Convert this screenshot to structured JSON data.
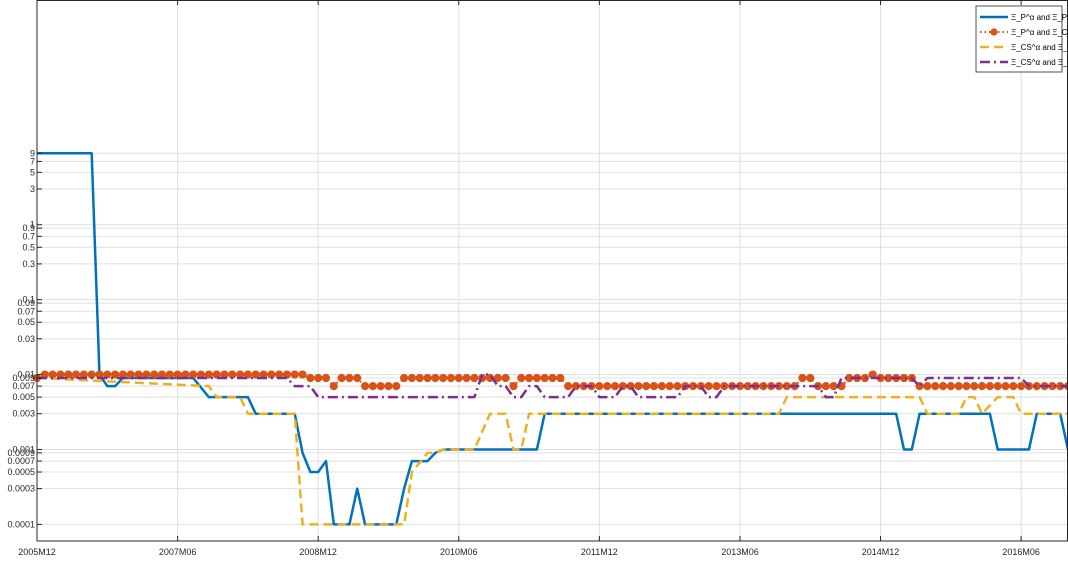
{
  "chart_data": {
    "type": "line",
    "y_scale": "log",
    "ylim": [
      6e-05,
      1000
    ],
    "grid": true,
    "legend_position": "top-right",
    "x_tick_labels": [
      "2005M12",
      "2007M06",
      "2008M12",
      "2010M06",
      "2011M12",
      "2013M06",
      "2014M12",
      "2016M06"
    ],
    "y_tick_values": [
      0.0001,
      0.0003,
      0.0005,
      0.0007,
      0.0009,
      0.001,
      0.003,
      0.005,
      0.007,
      0.009,
      0.01,
      0.03,
      0.05,
      0.07,
      0.09,
      0.1,
      0.3,
      0.5,
      0.7,
      0.9,
      1,
      3,
      5,
      7,
      9
    ],
    "y_tick_labels": [
      "0.0001",
      "0.0003",
      "0.0005",
      "0.0007",
      "0.0009",
      "0.001",
      "0.003",
      "0.005",
      "0.007",
      "0.009",
      "0.01",
      "0.03",
      "0.05",
      "0.07",
      "0.09",
      "0.1",
      "0.3",
      "0.5",
      "0.7",
      "0.9",
      "1",
      "3",
      "5",
      "7",
      "9"
    ],
    "x_domain": [
      0,
      132
    ],
    "series": [
      {
        "name": "Ξ_P^α and Ξ_P^β",
        "color": "#0072BD",
        "style": "solid",
        "points": [
          [
            0,
            9
          ],
          [
            7,
            9
          ],
          [
            8,
            0.01
          ],
          [
            9,
            0.007
          ],
          [
            10,
            0.007
          ],
          [
            11,
            0.009
          ],
          [
            20,
            0.009
          ],
          [
            22,
            0.005
          ],
          [
            27,
            0.005
          ],
          [
            28,
            0.003
          ],
          [
            33,
            0.003
          ],
          [
            34,
            0.0009
          ],
          [
            35,
            0.0005
          ],
          [
            36,
            0.0005
          ],
          [
            37,
            0.0007
          ],
          [
            38,
            0.0001
          ],
          [
            40,
            0.0001
          ],
          [
            41,
            0.0003
          ],
          [
            42,
            0.0001
          ],
          [
            46,
            0.0001
          ],
          [
            47,
            0.0003
          ],
          [
            48,
            0.0007
          ],
          [
            50,
            0.0007
          ],
          [
            51,
            0.0009
          ],
          [
            52,
            0.001
          ],
          [
            64,
            0.001
          ],
          [
            65,
            0.003
          ],
          [
            110,
            0.003
          ],
          [
            111,
            0.001
          ],
          [
            112,
            0.001
          ],
          [
            113,
            0.003
          ],
          [
            122,
            0.003
          ],
          [
            123,
            0.001
          ],
          [
            127,
            0.001
          ],
          [
            128,
            0.003
          ],
          [
            131,
            0.003
          ],
          [
            132,
            0.001
          ]
        ]
      },
      {
        "name": "Ξ_P^α and Ξ_CS^β",
        "color": "#D95319",
        "style": "dotted-marker",
        "points": [
          [
            0,
            0.009
          ],
          [
            1,
            0.01
          ],
          [
            2,
            0.01
          ],
          [
            3,
            0.01
          ],
          [
            4,
            0.01
          ],
          [
            5,
            0.01
          ],
          [
            6,
            0.01
          ],
          [
            7,
            0.01
          ],
          [
            8,
            0.01
          ],
          [
            9,
            0.01
          ],
          [
            10,
            0.01
          ],
          [
            11,
            0.01
          ],
          [
            12,
            0.01
          ],
          [
            13,
            0.01
          ],
          [
            14,
            0.01
          ],
          [
            15,
            0.01
          ],
          [
            16,
            0.01
          ],
          [
            17,
            0.01
          ],
          [
            18,
            0.01
          ],
          [
            19,
            0.01
          ],
          [
            20,
            0.01
          ],
          [
            21,
            0.01
          ],
          [
            22,
            0.01
          ],
          [
            23,
            0.01
          ],
          [
            24,
            0.01
          ],
          [
            25,
            0.01
          ],
          [
            26,
            0.01
          ],
          [
            27,
            0.01
          ],
          [
            28,
            0.01
          ],
          [
            29,
            0.01
          ],
          [
            30,
            0.01
          ],
          [
            31,
            0.01
          ],
          [
            32,
            0.01
          ],
          [
            33,
            0.01
          ],
          [
            34,
            0.01
          ],
          [
            35,
            0.009
          ],
          [
            36,
            0.009
          ],
          [
            37,
            0.009
          ],
          [
            38,
            0.007
          ],
          [
            39,
            0.009
          ],
          [
            40,
            0.009
          ],
          [
            41,
            0.009
          ],
          [
            42,
            0.007
          ],
          [
            43,
            0.007
          ],
          [
            44,
            0.007
          ],
          [
            45,
            0.007
          ],
          [
            46,
            0.007
          ],
          [
            47,
            0.009
          ],
          [
            48,
            0.009
          ],
          [
            49,
            0.009
          ],
          [
            50,
            0.009
          ],
          [
            51,
            0.009
          ],
          [
            52,
            0.009
          ],
          [
            53,
            0.009
          ],
          [
            54,
            0.009
          ],
          [
            55,
            0.009
          ],
          [
            56,
            0.009
          ],
          [
            57,
            0.009
          ],
          [
            58,
            0.009
          ],
          [
            59,
            0.009
          ],
          [
            60,
            0.009
          ],
          [
            61,
            0.007
          ],
          [
            62,
            0.009
          ],
          [
            63,
            0.009
          ],
          [
            64,
            0.009
          ],
          [
            65,
            0.009
          ],
          [
            66,
            0.009
          ],
          [
            67,
            0.009
          ],
          [
            68,
            0.007
          ],
          [
            69,
            0.007
          ],
          [
            70,
            0.007
          ],
          [
            71,
            0.007
          ],
          [
            72,
            0.007
          ],
          [
            73,
            0.007
          ],
          [
            74,
            0.007
          ],
          [
            75,
            0.007
          ],
          [
            76,
            0.007
          ],
          [
            77,
            0.007
          ],
          [
            78,
            0.007
          ],
          [
            79,
            0.007
          ],
          [
            80,
            0.007
          ],
          [
            81,
            0.007
          ],
          [
            82,
            0.007
          ],
          [
            83,
            0.007
          ],
          [
            84,
            0.007
          ],
          [
            85,
            0.007
          ],
          [
            86,
            0.007
          ],
          [
            87,
            0.007
          ],
          [
            88,
            0.007
          ],
          [
            89,
            0.007
          ],
          [
            90,
            0.007
          ],
          [
            91,
            0.007
          ],
          [
            92,
            0.007
          ],
          [
            93,
            0.007
          ],
          [
            94,
            0.007
          ],
          [
            95,
            0.007
          ],
          [
            96,
            0.007
          ],
          [
            97,
            0.007
          ],
          [
            98,
            0.009
          ],
          [
            99,
            0.009
          ],
          [
            100,
            0.007
          ],
          [
            101,
            0.007
          ],
          [
            102,
            0.007
          ],
          [
            103,
            0.007
          ],
          [
            104,
            0.009
          ],
          [
            105,
            0.009
          ],
          [
            106,
            0.009
          ],
          [
            107,
            0.01
          ],
          [
            108,
            0.009
          ],
          [
            109,
            0.009
          ],
          [
            110,
            0.009
          ],
          [
            111,
            0.009
          ],
          [
            112,
            0.009
          ],
          [
            113,
            0.007
          ],
          [
            114,
            0.007
          ],
          [
            115,
            0.007
          ],
          [
            116,
            0.007
          ],
          [
            117,
            0.007
          ],
          [
            118,
            0.007
          ],
          [
            119,
            0.007
          ],
          [
            120,
            0.007
          ],
          [
            121,
            0.007
          ],
          [
            122,
            0.007
          ],
          [
            123,
            0.007
          ],
          [
            124,
            0.007
          ],
          [
            125,
            0.007
          ],
          [
            126,
            0.007
          ],
          [
            127,
            0.007
          ],
          [
            128,
            0.007
          ],
          [
            129,
            0.007
          ],
          [
            130,
            0.007
          ],
          [
            131,
            0.007
          ],
          [
            132,
            0.007
          ]
        ]
      },
      {
        "name": "Ξ_CS^α and Ξ_P^β",
        "color": "#EDB120",
        "style": "dashed",
        "points": [
          [
            0,
            0.009
          ],
          [
            22,
            0.007
          ],
          [
            23,
            0.005
          ],
          [
            26,
            0.005
          ],
          [
            27,
            0.003
          ],
          [
            33,
            0.003
          ],
          [
            34,
            0.0001
          ],
          [
            47,
            0.0001
          ],
          [
            48,
            0.0005
          ],
          [
            50,
            0.0009
          ],
          [
            51,
            0.0009
          ],
          [
            52,
            0.001
          ],
          [
            56,
            0.001
          ],
          [
            58,
            0.003
          ],
          [
            60,
            0.003
          ],
          [
            61,
            0.001
          ],
          [
            62,
            0.001
          ],
          [
            63,
            0.003
          ],
          [
            70,
            0.003
          ],
          [
            95,
            0.003
          ],
          [
            96,
            0.005
          ],
          [
            113,
            0.005
          ],
          [
            114,
            0.003
          ],
          [
            118,
            0.003
          ],
          [
            119,
            0.005
          ],
          [
            120,
            0.005
          ],
          [
            121,
            0.003
          ],
          [
            123,
            0.005
          ],
          [
            125,
            0.005
          ],
          [
            126,
            0.003
          ],
          [
            132,
            0.003
          ]
        ]
      },
      {
        "name": "Ξ_CS^α and Ξ_CS^β",
        "color": "#7E2F8E",
        "style": "dash-dot",
        "points": [
          [
            0,
            0.009
          ],
          [
            32,
            0.009
          ],
          [
            33,
            0.007
          ],
          [
            35,
            0.007
          ],
          [
            36,
            0.005
          ],
          [
            56,
            0.005
          ],
          [
            57,
            0.01
          ],
          [
            58,
            0.01
          ],
          [
            59,
            0.007
          ],
          [
            60,
            0.007
          ],
          [
            61,
            0.005
          ],
          [
            62,
            0.005
          ],
          [
            63,
            0.007
          ],
          [
            64,
            0.007
          ],
          [
            65,
            0.005
          ],
          [
            68,
            0.005
          ],
          [
            69,
            0.007
          ],
          [
            71,
            0.007
          ],
          [
            72,
            0.005
          ],
          [
            74,
            0.005
          ],
          [
            75,
            0.007
          ],
          [
            76,
            0.007
          ],
          [
            77,
            0.005
          ],
          [
            82,
            0.005
          ],
          [
            83,
            0.007
          ],
          [
            85,
            0.007
          ],
          [
            86,
            0.005
          ],
          [
            87,
            0.005
          ],
          [
            88,
            0.007
          ],
          [
            100,
            0.007
          ],
          [
            101,
            0.005
          ],
          [
            102,
            0.005
          ],
          [
            103,
            0.009
          ],
          [
            112,
            0.009
          ],
          [
            113,
            0.007
          ],
          [
            114,
            0.009
          ],
          [
            126,
            0.009
          ],
          [
            127,
            0.007
          ],
          [
            132,
            0.007
          ]
        ]
      }
    ]
  }
}
